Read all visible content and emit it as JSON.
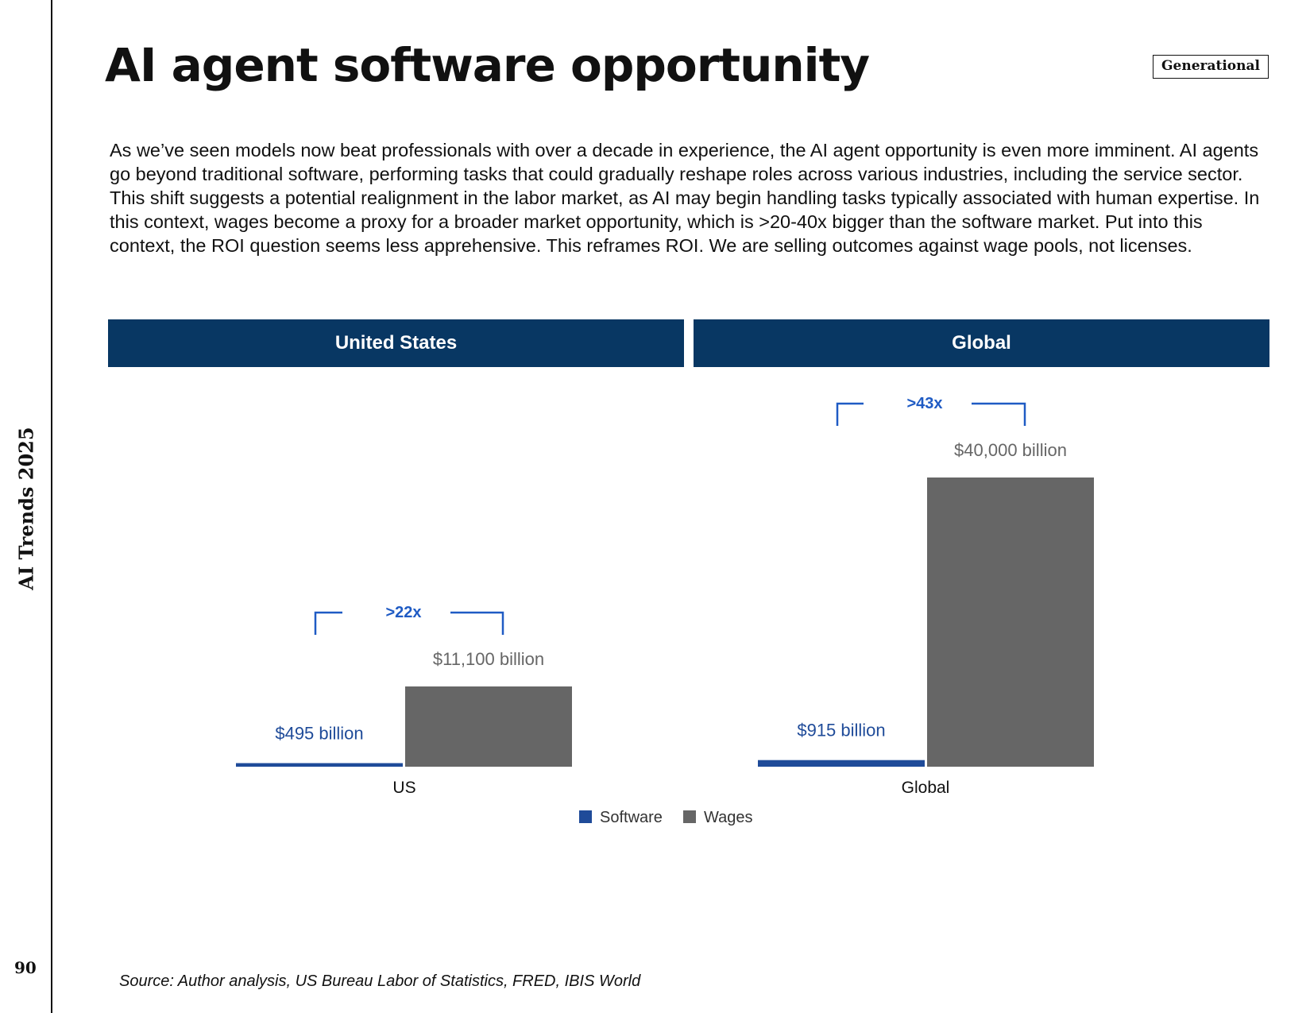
{
  "sidebar": {
    "title": "AI Trends 2025",
    "page_number": "90"
  },
  "header": {
    "title": "AI agent software opportunity",
    "tag": "Generational"
  },
  "body": {
    "paragraph": "As we’ve seen models now beat professionals with over a decade in experience, the AI agent opportunity is even more imminent. AI agents go beyond traditional software, performing tasks that could gradually reshape roles across various industries, including the service sector. This shift suggests a potential realignment in the labor market, as AI may begin handling tasks typically associated with human expertise. In this context, wages become a proxy for a broader market opportunity, which is >20-40x bigger than the software market. Put into this context, the ROI question seems less apprehensive. This reframes ROI. We are selling outcomes against wage pools, not licenses."
  },
  "panels": {
    "us_label": "United States",
    "global_label": "Global"
  },
  "footer": {
    "source": "Source: Author analysis, US Bureau Labor of Statistics, FRED, IBIS World"
  },
  "colors": {
    "header_bg": "#083763",
    "software": "#1f4b99",
    "wages": "#666666",
    "multiplier": "#1f5bc4"
  },
  "chart_data": [
    {
      "type": "bar",
      "categories": [
        "US"
      ],
      "series": [
        {
          "name": "Software",
          "values": [
            495
          ],
          "labels": [
            "$495 billion"
          ]
        },
        {
          "name": "Wages",
          "values": [
            11100
          ],
          "labels": [
            "$11,100 billion"
          ]
        }
      ],
      "unit": "billion USD",
      "ylim": [
        0,
        40000
      ],
      "annotation": ">22x",
      "grid": false,
      "legend": "bottom"
    },
    {
      "type": "bar",
      "categories": [
        "Global"
      ],
      "series": [
        {
          "name": "Software",
          "values": [
            915
          ],
          "labels": [
            "$915 billion"
          ]
        },
        {
          "name": "Wages",
          "values": [
            40000
          ],
          "labels": [
            "$40,000 billion"
          ]
        }
      ],
      "unit": "billion USD",
      "ylim": [
        0,
        40000
      ],
      "annotation": ">43x",
      "grid": false,
      "legend": "bottom"
    }
  ]
}
